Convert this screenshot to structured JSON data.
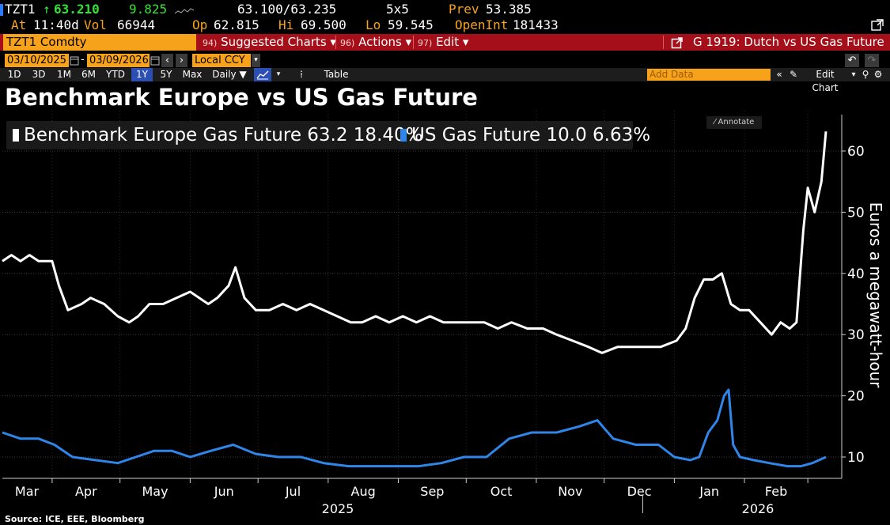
{
  "header": {
    "ticker": "TZT1",
    "arrow": "↑",
    "last": "63.210",
    "change": "9.825",
    "bid_ask": "63.100/63.235",
    "size": "5x5",
    "prev_label": "Prev",
    "prev": "53.385",
    "at_label": "At",
    "time": "11:40d",
    "vol_label": "Vol",
    "vol": "66944",
    "op_label": "Op",
    "op": "62.815",
    "hi_label": "Hi",
    "hi": "69.500",
    "lo_label": "Lo",
    "lo": "59.545",
    "openint_label": "OpenInt",
    "openint": "181433"
  },
  "command_bar": {
    "security": "TZT1 Comdty",
    "suggested_num": "94)",
    "suggested": "Suggested Charts ▾",
    "actions_num": "96)",
    "actions": "Actions ▾",
    "edit_num": "97)",
    "edit": "Edit ▾",
    "chart_name": "G 1919: Dutch vs US Gas Future"
  },
  "controls": {
    "start_date": "03/10/2025",
    "end_date": "03/09/2026",
    "currency": "Local CCY"
  },
  "toolbar": {
    "ranges": [
      "1D",
      "3D",
      "1M",
      "6M",
      "YTD",
      "1Y",
      "5Y",
      "Max"
    ],
    "selected_range": "1Y",
    "frequency": "Daily ▼",
    "table": "Table",
    "add_data": "Add Data",
    "edit_chart": "Edit Chart"
  },
  "chart": {
    "title": "Benchmark Europe vs US Gas Future",
    "annotate": "Annotate",
    "source": "Source: ICE, EEE, Bloomberg",
    "legend": [
      {
        "label": "Benchmark Europe Gas Future 63.2 18.40%",
        "color": "#ffffff"
      },
      {
        "label": "US Gas Future 10.0 6.63%",
        "color": "#2f86e8"
      }
    ]
  },
  "chart_data": {
    "type": "line",
    "title": "Benchmark Europe vs US Gas Future",
    "ylabel": "Euros a megawatt-hour",
    "ylim": [
      5,
      65
    ],
    "yticks": [
      10,
      20,
      30,
      40,
      50,
      60
    ],
    "x_tick_labels": [
      "Mar",
      "Apr",
      "May",
      "Jun",
      "Jul",
      "Aug",
      "Sep",
      "Oct",
      "Nov",
      "Dec",
      "Jan",
      "Feb"
    ],
    "year_labels": [
      "2025",
      "2026"
    ],
    "x_range": [
      "2025-03-10",
      "2026-03-09"
    ],
    "series": [
      {
        "name": "Benchmark Europe Gas Future",
        "color": "#ffffff",
        "points": [
          [
            "2025-03-10",
            42
          ],
          [
            "2025-03-14",
            43
          ],
          [
            "2025-03-18",
            42
          ],
          [
            "2025-03-22",
            43
          ],
          [
            "2025-03-26",
            42
          ],
          [
            "2025-04-01",
            42
          ],
          [
            "2025-04-04",
            38
          ],
          [
            "2025-04-08",
            34
          ],
          [
            "2025-04-14",
            35
          ],
          [
            "2025-04-18",
            36
          ],
          [
            "2025-04-24",
            35
          ],
          [
            "2025-04-30",
            33
          ],
          [
            "2025-05-05",
            32
          ],
          [
            "2025-05-09",
            33
          ],
          [
            "2025-05-14",
            35
          ],
          [
            "2025-05-20",
            35
          ],
          [
            "2025-05-26",
            36
          ],
          [
            "2025-06-01",
            37
          ],
          [
            "2025-06-05",
            36
          ],
          [
            "2025-06-09",
            35
          ],
          [
            "2025-06-13",
            36
          ],
          [
            "2025-06-18",
            38
          ],
          [
            "2025-06-21",
            41
          ],
          [
            "2025-06-25",
            36
          ],
          [
            "2025-06-30",
            34
          ],
          [
            "2025-07-06",
            34
          ],
          [
            "2025-07-12",
            35
          ],
          [
            "2025-07-18",
            34
          ],
          [
            "2025-07-24",
            35
          ],
          [
            "2025-07-30",
            34
          ],
          [
            "2025-08-05",
            33
          ],
          [
            "2025-08-11",
            32
          ],
          [
            "2025-08-16",
            32
          ],
          [
            "2025-08-22",
            33
          ],
          [
            "2025-08-28",
            32
          ],
          [
            "2025-09-03",
            33
          ],
          [
            "2025-09-09",
            32
          ],
          [
            "2025-09-15",
            33
          ],
          [
            "2025-09-21",
            32
          ],
          [
            "2025-09-27",
            32
          ],
          [
            "2025-10-03",
            32
          ],
          [
            "2025-10-09",
            32
          ],
          [
            "2025-10-15",
            31
          ],
          [
            "2025-10-21",
            32
          ],
          [
            "2025-10-28",
            31
          ],
          [
            "2025-11-04",
            31
          ],
          [
            "2025-11-10",
            30
          ],
          [
            "2025-11-17",
            29
          ],
          [
            "2025-11-24",
            28
          ],
          [
            "2025-11-30",
            27
          ],
          [
            "2025-12-07",
            28
          ],
          [
            "2025-12-14",
            28
          ],
          [
            "2025-12-20",
            28
          ],
          [
            "2025-12-26",
            28
          ],
          [
            "2026-01-02",
            29
          ],
          [
            "2026-01-06",
            31
          ],
          [
            "2026-01-10",
            36
          ],
          [
            "2026-01-14",
            39
          ],
          [
            "2026-01-18",
            39
          ],
          [
            "2026-01-22",
            40
          ],
          [
            "2026-01-26",
            35
          ],
          [
            "2026-01-30",
            34
          ],
          [
            "2026-02-03",
            34
          ],
          [
            "2026-02-08",
            32
          ],
          [
            "2026-02-13",
            30
          ],
          [
            "2026-02-17",
            32
          ],
          [
            "2026-02-21",
            31
          ],
          [
            "2026-02-24",
            32
          ],
          [
            "2026-02-27",
            47
          ],
          [
            "2026-03-01",
            54
          ],
          [
            "2026-03-04",
            50
          ],
          [
            "2026-03-07",
            55
          ],
          [
            "2026-03-09",
            63.2
          ]
        ]
      },
      {
        "name": "US Gas Future",
        "color": "#2f86e8",
        "points": [
          [
            "2025-03-10",
            14
          ],
          [
            "2025-03-18",
            13
          ],
          [
            "2025-03-26",
            13
          ],
          [
            "2025-04-02",
            12
          ],
          [
            "2025-04-10",
            10
          ],
          [
            "2025-04-20",
            9.5
          ],
          [
            "2025-04-30",
            9
          ],
          [
            "2025-05-08",
            10
          ],
          [
            "2025-05-16",
            11
          ],
          [
            "2025-05-24",
            11
          ],
          [
            "2025-06-01",
            10
          ],
          [
            "2025-06-10",
            11
          ],
          [
            "2025-06-20",
            12
          ],
          [
            "2025-06-30",
            10.5
          ],
          [
            "2025-07-10",
            10
          ],
          [
            "2025-07-20",
            10
          ],
          [
            "2025-07-30",
            9
          ],
          [
            "2025-08-10",
            8.5
          ],
          [
            "2025-08-20",
            8.5
          ],
          [
            "2025-08-30",
            8.5
          ],
          [
            "2025-09-10",
            8.5
          ],
          [
            "2025-09-20",
            9
          ],
          [
            "2025-09-30",
            10
          ],
          [
            "2025-10-10",
            10
          ],
          [
            "2025-10-20",
            13
          ],
          [
            "2025-10-30",
            14
          ],
          [
            "2025-11-10",
            14
          ],
          [
            "2025-11-20",
            15
          ],
          [
            "2025-11-28",
            16
          ],
          [
            "2025-12-05",
            13
          ],
          [
            "2025-12-15",
            12
          ],
          [
            "2025-12-25",
            12
          ],
          [
            "2026-01-01",
            10
          ],
          [
            "2026-01-08",
            9.5
          ],
          [
            "2026-01-12",
            10
          ],
          [
            "2026-01-16",
            14
          ],
          [
            "2026-01-20",
            16
          ],
          [
            "2026-01-23",
            20
          ],
          [
            "2026-01-25",
            21
          ],
          [
            "2026-01-27",
            12
          ],
          [
            "2026-01-30",
            10
          ],
          [
            "2026-02-05",
            9.5
          ],
          [
            "2026-02-12",
            9
          ],
          [
            "2026-02-20",
            8.5
          ],
          [
            "2026-02-26",
            8.5
          ],
          [
            "2026-03-03",
            9
          ],
          [
            "2026-03-09",
            10.0
          ]
        ]
      }
    ]
  }
}
